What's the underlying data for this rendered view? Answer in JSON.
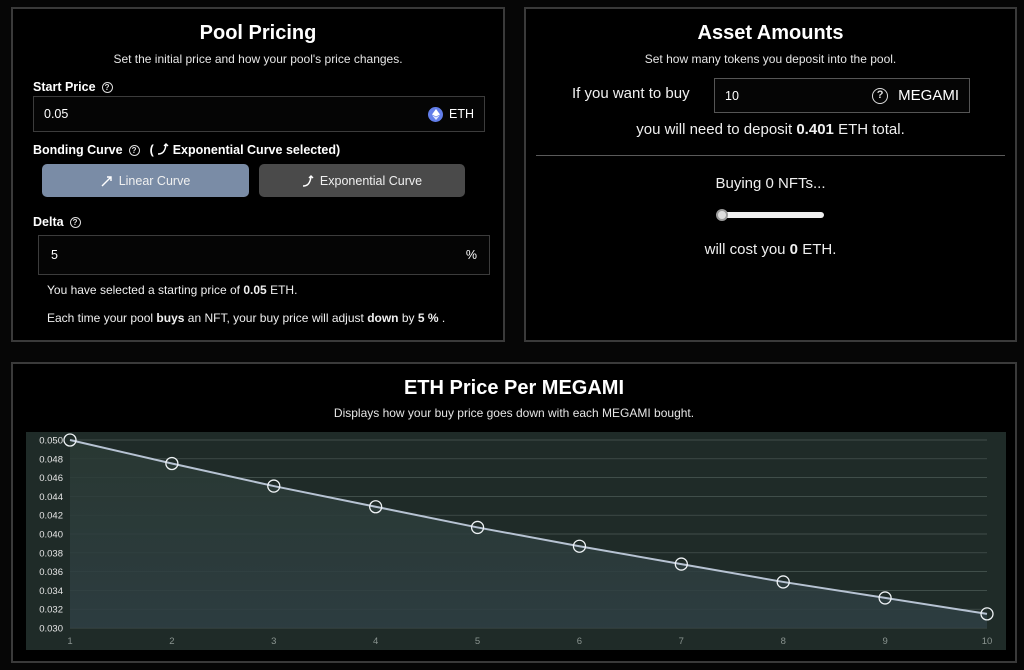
{
  "pool_pricing": {
    "title": "Pool Pricing",
    "subtitle": "Set the initial price and how your pool's price changes.",
    "start_price_label": "Start Price",
    "start_price_value": "0.05",
    "start_price_currency": "ETH",
    "bonding_curve_label": "Bonding Curve",
    "bonding_curve_selected": "Exponential Curve selected",
    "linear_button": "Linear Curve",
    "exponential_button": "Exponential Curve",
    "delta_label": "Delta",
    "delta_value": "5",
    "delta_unit": "%",
    "summary1_prefix": "You have selected a starting price of",
    "summary1_value": "0.05",
    "summary1_suffix": "ETH.",
    "summary2_a": "Each time your pool",
    "summary2_b": "buys",
    "summary2_c": "an NFT, your buy price will adjust",
    "summary2_d": "down",
    "summary2_e": "by",
    "summary2_f": "5 %",
    "summary2_g": "."
  },
  "asset_amounts": {
    "title": "Asset Amounts",
    "subtitle": "Set how many tokens you deposit into the pool.",
    "buy_prefix": "If you want to buy",
    "buy_quantity": "10",
    "buy_token": "MEGAMI",
    "deposit_prefix": "you will need to deposit",
    "deposit_value": "0.401",
    "deposit_suffix": "ETH total.",
    "buying_text": "Buying 0 NFTs...",
    "slider_value": 0,
    "cost_prefix": "will cost you",
    "cost_value": "0",
    "cost_suffix": "ETH."
  },
  "chart_panel": {
    "title": "ETH Price Per MEGAMI",
    "subtitle": "Displays how your buy price goes down with each MEGAMI bought."
  },
  "chart_data": {
    "type": "line",
    "x": [
      1,
      2,
      3,
      4,
      5,
      6,
      7,
      8,
      9,
      10
    ],
    "values": [
      0.05,
      0.0475,
      0.0451,
      0.0429,
      0.0407,
      0.0387,
      0.0368,
      0.0349,
      0.0332,
      0.0315
    ],
    "yticks": [
      "0.050",
      "0.048",
      "0.046",
      "0.044",
      "0.042",
      "0.040",
      "0.038",
      "0.036",
      "0.034",
      "0.032",
      "0.030"
    ],
    "xticks": [
      "1",
      "2",
      "3",
      "4",
      "5",
      "6",
      "7",
      "8",
      "9",
      "10"
    ],
    "ylim": [
      0.03,
      0.05
    ],
    "xlim": [
      1,
      10
    ],
    "grid": true,
    "colors": {
      "line": "#b7c3d3",
      "area_top": "#2a3a34",
      "area_bottom": "#2f3f44",
      "background": "#1f2b28"
    }
  }
}
